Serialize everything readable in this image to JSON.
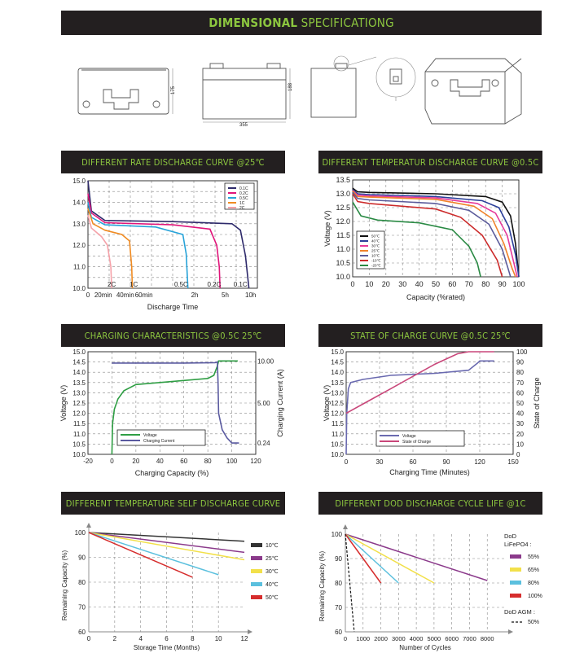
{
  "header": {
    "bold": "DIMENSIONAL",
    "light": "SPECIFICATIONG"
  },
  "drawing": {
    "height_label": "175",
    "front_height_label": "188",
    "width_label": "355"
  },
  "charts": {
    "rate": {
      "title": "DIFFERENT RATE DISCHARGE CURVE @25℃"
    },
    "temp": {
      "title": "DIFFERENT TEMPERATUR DISCHARGE CURVE @0.5C"
    },
    "charging": {
      "title": "CHARGING CHARACTERISTICS @0.5C 25℃"
    },
    "soc": {
      "title": "STATE OF CHARGE CURVE @0.5C 25℃"
    },
    "self": {
      "title": "DIFFERENT TEMPERATURE SELF DISCHARGE CURVE"
    },
    "dod": {
      "title": "DIFFERENT DOD DISCHARGE CYCLE LIFE @1C"
    }
  },
  "chart_data": [
    {
      "id": "rate",
      "type": "line",
      "title": "DIFFERENT RATE DISCHARGE CURVE @25℃",
      "xlabel": "Discharge Time",
      "ylabel": "",
      "x_ticks": [
        "0",
        "20min",
        "40min",
        "60min",
        "2h",
        "5h",
        "10h"
      ],
      "ylim": [
        10.0,
        15.0
      ],
      "y_ticks": [
        "10.0",
        "11.0",
        "12.0",
        "13.0",
        "14.0",
        "15.0"
      ],
      "curve_labels": [
        "2C",
        "1C",
        "0.5C",
        "0.2C",
        "0.1C"
      ],
      "legend_position": "top-right",
      "series": [
        {
          "name": "0.1C",
          "color": "#2e2a6b",
          "points": [
            [
              0,
              15.0
            ],
            [
              0.02,
              13.6
            ],
            [
              0.1,
              13.15
            ],
            [
              0.5,
              13.1
            ],
            [
              0.85,
              13.0
            ],
            [
              0.9,
              12.7
            ],
            [
              0.93,
              11.5
            ],
            [
              0.95,
              10.0
            ]
          ]
        },
        {
          "name": "0.2C",
          "color": "#e0157a",
          "points": [
            [
              0,
              14.4
            ],
            [
              0.02,
              13.5
            ],
            [
              0.1,
              13.05
            ],
            [
              0.5,
              12.95
            ],
            [
              0.72,
              12.75
            ],
            [
              0.76,
              12.0
            ],
            [
              0.775,
              11.0
            ],
            [
              0.78,
              10.0
            ]
          ]
        },
        {
          "name": "0.5C",
          "color": "#27a3d9",
          "points": [
            [
              0,
              14.0
            ],
            [
              0.02,
              13.3
            ],
            [
              0.1,
              12.95
            ],
            [
              0.4,
              12.85
            ],
            [
              0.56,
              12.5
            ],
            [
              0.58,
              11.6
            ],
            [
              0.59,
              10.0
            ]
          ]
        },
        {
          "name": "1C",
          "color": "#f08b22",
          "points": [
            [
              0,
              13.7
            ],
            [
              0.03,
              13.0
            ],
            [
              0.1,
              12.7
            ],
            [
              0.2,
              12.5
            ],
            [
              0.245,
              12.2
            ],
            [
              0.258,
              11.0
            ],
            [
              0.262,
              10.0
            ]
          ]
        },
        {
          "name": "2C",
          "color": "#f5a1a8",
          "points": [
            [
              0,
              13.4
            ],
            [
              0.02,
              12.8
            ],
            [
              0.08,
              12.4
            ],
            [
              0.115,
              12.0
            ],
            [
              0.135,
              11.0
            ],
            [
              0.14,
              10.0
            ]
          ]
        }
      ]
    },
    {
      "id": "temp",
      "type": "line",
      "title": "DIFFERENT TEMPERATUR DISCHARGE CURVE @0.5C",
      "xlabel": "Capacity (%rated)",
      "ylabel": "Voltage (V)",
      "xlim": [
        0,
        100
      ],
      "ylim": [
        10.0,
        13.5
      ],
      "x_ticks": [
        "0",
        "10",
        "20",
        "30",
        "40",
        "50",
        "60",
        "70",
        "80",
        "90",
        "100"
      ],
      "y_ticks": [
        "10.0",
        "10.5",
        "11.0",
        "11.5",
        "12.0",
        "12.5",
        "13.0",
        "13.5"
      ],
      "legend_position": "bottom-left",
      "series": [
        {
          "name": "50℃",
          "color": "#111111",
          "points": [
            [
              0,
              13.2
            ],
            [
              3,
              13.07
            ],
            [
              10,
              13.05
            ],
            [
              50,
              13.0
            ],
            [
              80,
              12.9
            ],
            [
              90,
              12.7
            ],
            [
              95,
              12.2
            ],
            [
              98,
              11.2
            ],
            [
              100,
              10.0
            ]
          ]
        },
        {
          "name": "40℃",
          "color": "#2b3f9a",
          "points": [
            [
              0,
              13.15
            ],
            [
              3,
              13.0
            ],
            [
              10,
              12.97
            ],
            [
              50,
              12.9
            ],
            [
              78,
              12.75
            ],
            [
              88,
              12.5
            ],
            [
              94,
              11.8
            ],
            [
              98,
              10.8
            ],
            [
              100,
              10.0
            ]
          ]
        },
        {
          "name": "30℃",
          "color": "#e63a9a",
          "points": [
            [
              0,
              13.12
            ],
            [
              3,
              12.95
            ],
            [
              10,
              12.92
            ],
            [
              50,
              12.85
            ],
            [
              75,
              12.65
            ],
            [
              86,
              12.3
            ],
            [
              93,
              11.5
            ],
            [
              97,
              10.5
            ],
            [
              99,
              10.0
            ]
          ]
        },
        {
          "name": "25℃",
          "color": "#f0822a",
          "points": [
            [
              0,
              13.1
            ],
            [
              3,
              12.9
            ],
            [
              10,
              12.88
            ],
            [
              50,
              12.8
            ],
            [
              73,
              12.55
            ],
            [
              84,
              12.1
            ],
            [
              91,
              11.2
            ],
            [
              96,
              10.3
            ],
            [
              98,
              10.0
            ]
          ]
        },
        {
          "name": "10℃",
          "color": "#5a5a9a",
          "points": [
            [
              0,
              13.05
            ],
            [
              3,
              12.83
            ],
            [
              10,
              12.78
            ],
            [
              50,
              12.65
            ],
            [
              70,
              12.4
            ],
            [
              82,
              11.9
            ],
            [
              90,
              11.0
            ],
            [
              94,
              10.2
            ],
            [
              95,
              10.0
            ]
          ]
        },
        {
          "name": "-10℃",
          "color": "#cc2b2b",
          "points": [
            [
              0,
              13.0
            ],
            [
              3,
              12.72
            ],
            [
              10,
              12.65
            ],
            [
              50,
              12.45
            ],
            [
              65,
              12.15
            ],
            [
              78,
              11.5
            ],
            [
              87,
              10.6
            ],
            [
              90,
              10.0
            ]
          ]
        },
        {
          "name": "-20℃",
          "color": "#2a8a44",
          "points": [
            [
              0,
              12.7
            ],
            [
              5,
              12.2
            ],
            [
              15,
              12.05
            ],
            [
              40,
              11.95
            ],
            [
              60,
              11.7
            ],
            [
              70,
              11.1
            ],
            [
              75,
              10.5
            ],
            [
              77,
              10.0
            ]
          ]
        }
      ]
    },
    {
      "id": "charging",
      "type": "line",
      "title": "CHARGING CHARACTERISTICS @0.5C 25℃",
      "xlabel": "Charging Capacity (%)",
      "ylabel": "Voltage (V)",
      "y2label": "Charging Current (A)",
      "xlim": [
        -20,
        120
      ],
      "ylim": [
        10.0,
        15.0
      ],
      "x_ticks": [
        "-20",
        "0",
        "20",
        "40",
        "60",
        "80",
        "100",
        "120"
      ],
      "y_ticks": [
        "10.0",
        "10.5",
        "11.0",
        "11.5",
        "12.0",
        "12.5",
        "13.0",
        "13.5",
        "14.0",
        "14.5",
        "15.0"
      ],
      "y2_ticks": [
        "0.24",
        "5.00",
        "10.00"
      ],
      "legend_position": "bottom-left",
      "series": [
        {
          "name": "Voltage",
          "color": "#2f9e44",
          "points": [
            [
              0,
              10.0
            ],
            [
              0.5,
              11.5
            ],
            [
              2,
              12.2
            ],
            [
              5,
              12.7
            ],
            [
              10,
              13.1
            ],
            [
              20,
              13.4
            ],
            [
              40,
              13.5
            ],
            [
              60,
              13.6
            ],
            [
              80,
              13.7
            ],
            [
              85,
              13.85
            ],
            [
              88,
              14.3
            ],
            [
              89,
              14.55
            ],
            [
              105,
              14.55
            ]
          ]
        },
        {
          "name": "Charging Current",
          "color": "#5a5aa0",
          "points": [
            [
              0,
              14.45
            ],
            [
              60,
              14.45
            ],
            [
              86,
              14.47
            ],
            [
              88,
              14.5
            ],
            [
              88.5,
              13.5
            ],
            [
              89,
              12.0
            ],
            [
              92,
              11.2
            ],
            [
              96,
              10.8
            ],
            [
              100,
              10.55
            ],
            [
              106,
              10.55
            ]
          ]
        }
      ]
    },
    {
      "id": "soc",
      "type": "line",
      "title": "STATE OF CHARGE CURVE @0.5C 25℃",
      "xlabel": "Charging Time (Minutes)",
      "ylabel": "Voltage (V)",
      "y2label": "State of Charge",
      "xlim": [
        0,
        150
      ],
      "ylim": [
        10.0,
        15.0
      ],
      "x_ticks": [
        "0",
        "30",
        "60",
        "90",
        "120",
        "150"
      ],
      "y_ticks": [
        "10.0",
        "10.5",
        "11.0",
        "11.5",
        "12.0",
        "12.5",
        "13.0",
        "13.5",
        "14.0",
        "14.5",
        "15.0"
      ],
      "y2_ticks": [
        "0",
        "10",
        "20",
        "30",
        "40",
        "50",
        "60",
        "70",
        "80",
        "90",
        "100"
      ],
      "legend_position": "bottom-left",
      "series": [
        {
          "name": "Voltage",
          "color": "#6a6ab0",
          "points": [
            [
              0,
              10.0
            ],
            [
              0.5,
              12.0
            ],
            [
              2,
              13.2
            ],
            [
              4,
              13.5
            ],
            [
              15,
              13.65
            ],
            [
              40,
              13.85
            ],
            [
              80,
              13.95
            ],
            [
              110,
              14.1
            ],
            [
              118,
              14.45
            ],
            [
              120,
              14.55
            ],
            [
              133,
              14.55
            ]
          ]
        },
        {
          "name": "State of Charge",
          "color": "#c9477a",
          "points": [
            [
              0,
              12.0
            ],
            [
              20,
              12.6
            ],
            [
              40,
              13.2
            ],
            [
              60,
              13.8
            ],
            [
              80,
              14.4
            ],
            [
              100,
              14.9
            ],
            [
              110,
              15.0
            ],
            [
              133,
              15.0
            ]
          ]
        }
      ]
    },
    {
      "id": "self",
      "type": "line",
      "title": "DIFFERENT TEMPERATURE SELF DISCHARGE CURVE",
      "xlabel": "Storage Time (Months)",
      "ylabel": "Remaining Capacity (%)",
      "xlim": [
        0,
        12
      ],
      "ylim": [
        60,
        100
      ],
      "x_ticks": [
        "0",
        "2",
        "4",
        "6",
        "8",
        "10",
        "12"
      ],
      "y_ticks": [
        "60",
        "70",
        "80",
        "90",
        "100"
      ],
      "legend_position": "right",
      "series": [
        {
          "name": "10℃",
          "color": "#333333",
          "points": [
            [
              0,
              100
            ],
            [
              12,
              96.5
            ]
          ]
        },
        {
          "name": "25℃",
          "color": "#8b3a8b",
          "points": [
            [
              0,
              100
            ],
            [
              12,
              92
            ]
          ]
        },
        {
          "name": "30℃",
          "color": "#f2e04a",
          "points": [
            [
              0,
              100
            ],
            [
              12,
              89
            ]
          ]
        },
        {
          "name": "40℃",
          "color": "#5bc0de",
          "points": [
            [
              0,
              100
            ],
            [
              10,
              83
            ]
          ]
        },
        {
          "name": "50℃",
          "color": "#d62d2d",
          "points": [
            [
              0,
              100
            ],
            [
              8,
              82
            ]
          ]
        }
      ]
    },
    {
      "id": "dod",
      "type": "line",
      "title": "DIFFERENT DOD DISCHARGE CYCLE LIFE @1C",
      "xlabel": "Number of Cycles",
      "ylabel": "Remaining Capacity (%)",
      "xlim": [
        0,
        9000
      ],
      "ylim": [
        60,
        100
      ],
      "x_ticks": [
        "0",
        "1000",
        "2000",
        "3000",
        "4000",
        "5000",
        "6000",
        "7000",
        "8000"
      ],
      "y_ticks": [
        "60",
        "70",
        "80",
        "90",
        "100"
      ],
      "legend_position": "right",
      "legend_headers": [
        "DoD",
        "LiFePO4 :",
        "DoD AGM :"
      ],
      "series": [
        {
          "name": "55%",
          "color": "#8b3a8b",
          "points": [
            [
              0,
              100
            ],
            [
              8000,
              81
            ]
          ]
        },
        {
          "name": "65%",
          "color": "#f2e04a",
          "points": [
            [
              0,
              100
            ],
            [
              5000,
              80
            ]
          ]
        },
        {
          "name": "80%",
          "color": "#5bc0de",
          "points": [
            [
              0,
              100
            ],
            [
              3000,
              80
            ]
          ]
        },
        {
          "name": "100%",
          "color": "#d62d2d",
          "points": [
            [
              0,
              100
            ],
            [
              2000,
              80
            ]
          ]
        },
        {
          "name": "50%",
          "color": "#111111",
          "dashed": true,
          "points": [
            [
              0,
              100
            ],
            [
              500,
              60
            ]
          ]
        }
      ]
    }
  ]
}
